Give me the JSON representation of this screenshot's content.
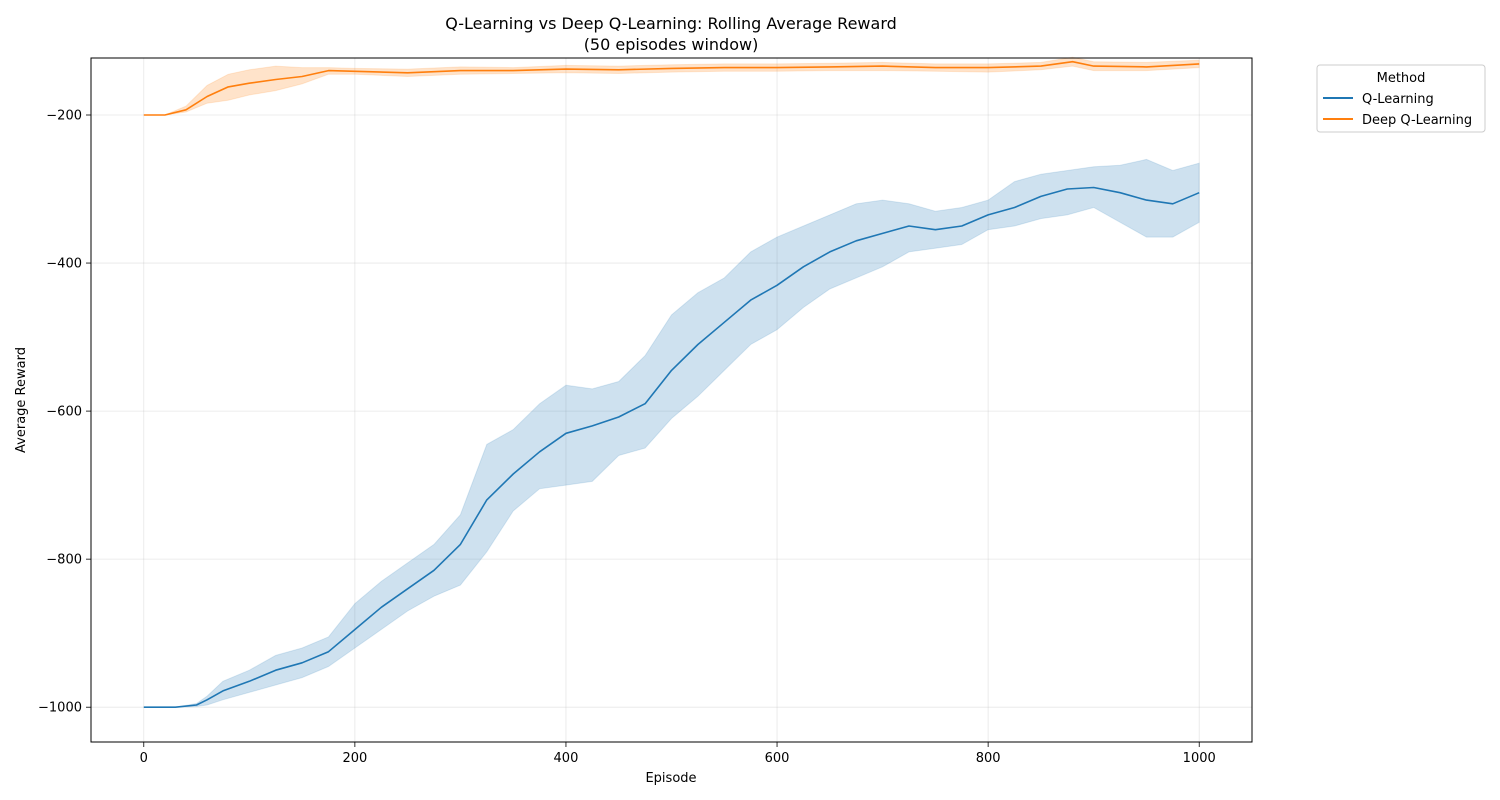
{
  "chart_data": {
    "type": "line",
    "title": "Q-Learning vs Deep Q-Learning: Rolling Average Reward",
    "subtitle": "(50 episodes window)",
    "xlabel": "Episode",
    "ylabel": "Average Reward",
    "xlim": [
      -50,
      1050
    ],
    "ylim": [
      -1047,
      -123
    ],
    "x_ticks": [
      0,
      200,
      400,
      600,
      800,
      1000
    ],
    "x_tick_labels": [
      "0",
      "200",
      "400",
      "600",
      "800",
      "1000"
    ],
    "y_ticks": [
      -200,
      -400,
      -600,
      -800,
      -1000
    ],
    "y_tick_labels": [
      "−200",
      "−400",
      "−600",
      "−800",
      "−1000"
    ],
    "grid": true,
    "legend": {
      "title": "Method",
      "placement": "outside-top-right"
    },
    "series": [
      {
        "name": "Q-Learning",
        "color": "#1f77b4",
        "band_color": "#1f77b4",
        "x": [
          0,
          30,
          50,
          60,
          75,
          100,
          125,
          150,
          175,
          200,
          225,
          250,
          275,
          300,
          325,
          350,
          375,
          400,
          425,
          450,
          475,
          500,
          525,
          550,
          575,
          600,
          625,
          650,
          675,
          700,
          725,
          750,
          775,
          800,
          825,
          850,
          875,
          900,
          925,
          950,
          975,
          1000
        ],
        "values": [
          -1000,
          -1000,
          -997,
          -990,
          -978,
          -965,
          -950,
          -940,
          -925,
          -895,
          -865,
          -840,
          -815,
          -780,
          -720,
          -685,
          -655,
          -630,
          -620,
          -608,
          -590,
          -545,
          -510,
          -480,
          -450,
          -430,
          -405,
          -385,
          -370,
          -360,
          -350,
          -355,
          -350,
          -335,
          -325,
          -310,
          -300,
          -298,
          -305,
          -315,
          -320,
          -305
        ],
        "lower": [
          -1000,
          -1000,
          -999,
          -997,
          -990,
          -980,
          -970,
          -960,
          -945,
          -920,
          -895,
          -870,
          -850,
          -835,
          -790,
          -735,
          -705,
          -700,
          -695,
          -660,
          -650,
          -610,
          -580,
          -545,
          -510,
          -490,
          -460,
          -435,
          -420,
          -405,
          -385,
          -380,
          -375,
          -355,
          -350,
          -340,
          -335,
          -325,
          -345,
          -365,
          -365,
          -345
        ],
        "upper": [
          -1000,
          -1000,
          -995,
          -985,
          -965,
          -950,
          -930,
          -920,
          -905,
          -860,
          -830,
          -805,
          -780,
          -740,
          -645,
          -625,
          -590,
          -565,
          -570,
          -560,
          -525,
          -470,
          -440,
          -420,
          -385,
          -365,
          -350,
          -335,
          -320,
          -315,
          -320,
          -330,
          -325,
          -315,
          -290,
          -280,
          -275,
          -270,
          -268,
          -260,
          -275,
          -265
        ]
      },
      {
        "name": "Deep Q-Learning",
        "color": "#ff7f0e",
        "band_color": "#ff7f0e",
        "x": [
          0,
          20,
          40,
          60,
          80,
          100,
          125,
          150,
          175,
          200,
          250,
          300,
          350,
          400,
          450,
          500,
          550,
          600,
          650,
          700,
          750,
          800,
          850,
          880,
          900,
          950,
          1000
        ],
        "values": [
          -200,
          -200,
          -193,
          -175,
          -162,
          -157,
          -152,
          -148,
          -140,
          -141,
          -143,
          -140,
          -140,
          -138,
          -139,
          -137,
          -136,
          -136,
          -135,
          -134,
          -136,
          -136,
          -134,
          -128,
          -134,
          -135,
          -131
        ],
        "lower": [
          -200,
          -200,
          -196,
          -184,
          -180,
          -173,
          -167,
          -158,
          -145,
          -145,
          -148,
          -145,
          -144,
          -143,
          -144,
          -142,
          -141,
          -141,
          -140,
          -140,
          -141,
          -142,
          -139,
          -134,
          -140,
          -140,
          -136
        ],
        "upper": [
          -200,
          -200,
          -188,
          -160,
          -145,
          -139,
          -134,
          -136,
          -136,
          -137,
          -138,
          -135,
          -136,
          -133,
          -134,
          -132,
          -131,
          -131,
          -130,
          -129,
          -131,
          -131,
          -129,
          -122,
          -128,
          -129,
          -126
        ]
      }
    ]
  }
}
